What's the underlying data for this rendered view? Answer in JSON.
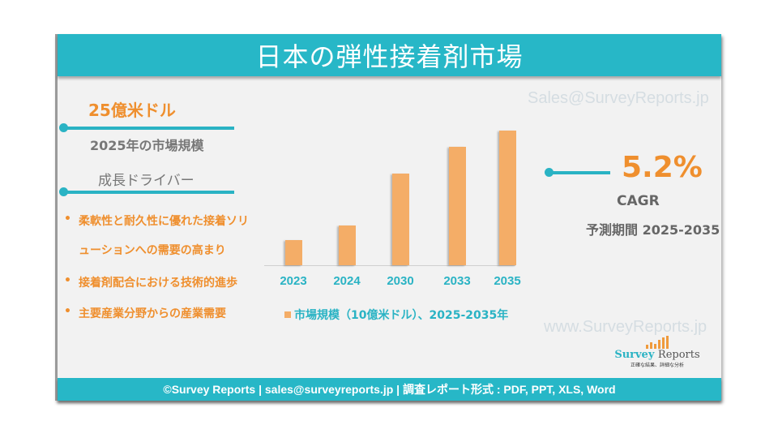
{
  "header": {
    "title": "日本の弾性接着剤市場"
  },
  "left_panel": {
    "market_value": "25億米ドル",
    "market_label": "2025年の市場規模",
    "drivers_title": "成長ドライバー",
    "drivers": [
      {
        "line1": "柔軟性と耐久性に優れた接着ソリ",
        "line2": "ューションへの需要の高まり"
      },
      {
        "line1": "接着剤配合における技術的進歩"
      },
      {
        "line1": "主要産業分野からの産業需要"
      }
    ],
    "bullet_glyph": "•"
  },
  "chart_data": {
    "type": "bar",
    "title": "",
    "categories": [
      "2023",
      "2024",
      "2030",
      "2033",
      "2035"
    ],
    "values": [
      31,
      49,
      113,
      146,
      166
    ],
    "value_note": "relative bar heights in pixels; no axis values shown",
    "series": [
      {
        "name": "市場規模（10億米ドル）、2025-2035年",
        "values": [
          31,
          49,
          113,
          146,
          166
        ]
      }
    ],
    "xlabel": "",
    "ylabel": "",
    "grid": false,
    "legend_position": "bottom",
    "bar_color": "#f4ad67"
  },
  "chart_labels": {
    "categories": [
      "2023",
      "2024",
      "2030",
      "2033",
      "2035"
    ],
    "legend": "市場規模（10億米ドル）、2025-2035年"
  },
  "right_panel": {
    "watermark_email": "Sales@SurveyReports.jp",
    "cagr_value": "5.2%",
    "cagr_label": "CAGR",
    "forecast_period": "予測期間 2025-2035",
    "watermark_url": "www.SurveyReports.jp"
  },
  "logo": {
    "word1": "Survey",
    "word2": "Reports",
    "tagline": "正確な結果、詳細な分析"
  },
  "footer": {
    "text": "©Survey Reports | sales@surveyreports.jp |  調査レポート形式 : PDF, PPT, XLS, Word"
  },
  "colors": {
    "teal": "#27b7c7",
    "orange": "#ef8f2e",
    "bar": "#f4ad67",
    "background": "#f2f2f2"
  }
}
